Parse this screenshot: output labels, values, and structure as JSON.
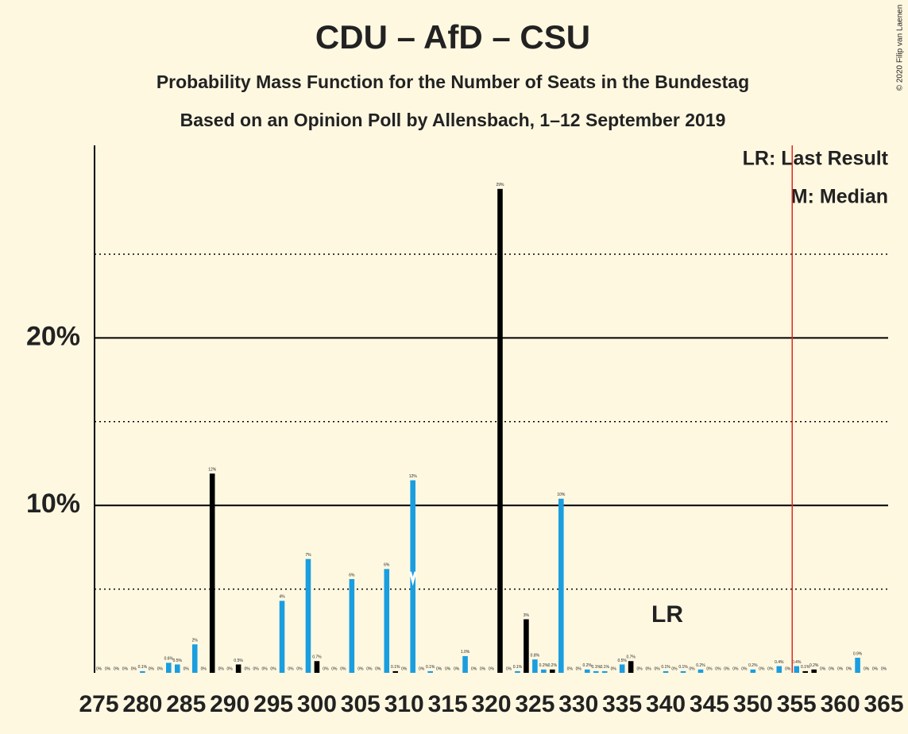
{
  "chart_data": {
    "type": "bar",
    "title": "CDU – AfD – CSU",
    "subtitle": "Probability Mass Function for the Number of Seats in the Bundestag",
    "subtitle2": "Based on an Opinion Poll by Allensbach, 1–12 September 2019",
    "copyright": "© 2020 Filip van Laenen",
    "legend": [
      "LR: Last Result",
      "M: Median"
    ],
    "annotation": "LR",
    "color": "#1a9ee0",
    "highlight_color": "#000000",
    "last_result_color": "#e0281e",
    "highlighted": [
      288,
      291,
      300,
      309,
      321,
      324,
      327,
      336,
      356,
      357
    ],
    "median": 311,
    "last_result": 354,
    "x": [
      275,
      276,
      277,
      278,
      279,
      280,
      281,
      282,
      283,
      284,
      285,
      286,
      287,
      288,
      289,
      290,
      291,
      292,
      293,
      294,
      295,
      296,
      297,
      298,
      299,
      300,
      301,
      302,
      303,
      304,
      305,
      306,
      307,
      308,
      309,
      310,
      311,
      312,
      313,
      314,
      315,
      316,
      317,
      318,
      319,
      320,
      321,
      322,
      323,
      324,
      325,
      326,
      327,
      328,
      329,
      330,
      331,
      332,
      333,
      334,
      335,
      336,
      337,
      338,
      339,
      340,
      341,
      342,
      343,
      344,
      345,
      346,
      347,
      348,
      349,
      350,
      351,
      352,
      353,
      354,
      355,
      356,
      357,
      358,
      359,
      360,
      361,
      362,
      363,
      364,
      365
    ],
    "values": [
      0,
      0,
      0,
      0,
      0,
      0.1,
      0,
      0,
      0.6,
      0.5,
      0,
      1.7,
      0,
      11.9,
      0,
      0,
      0.5,
      0,
      0,
      0,
      0,
      4.3,
      0,
      0,
      6.8,
      0.7,
      0,
      0,
      0,
      5.6,
      0,
      0,
      0,
      6.2,
      0.1,
      0,
      11.5,
      0,
      0.1,
      0,
      0,
      0,
      1.0,
      0,
      0,
      0,
      28.9,
      0,
      0.1,
      3.2,
      0.8,
      0.2,
      0.2,
      10.4,
      0,
      0,
      0.2,
      0.1,
      0.1,
      0,
      0.5,
      0.7,
      0,
      0,
      0,
      0.1,
      0,
      0.1,
      0,
      0.2,
      0,
      0,
      0,
      0,
      0,
      0.2,
      0,
      0,
      0.4,
      0,
      0.4,
      0.1,
      0.2,
      0,
      0,
      0,
      0,
      0.9,
      0,
      0,
      0
    ],
    "value_labels": [
      "0%",
      "0%",
      "0%",
      "0%",
      "0%",
      "0.1%",
      "0%",
      "0%",
      "0.6%",
      "0.5%",
      "0%",
      "2%",
      "0%",
      "12%",
      "0%",
      "0%",
      "0.5%",
      "0%",
      "0%",
      "0%",
      "0%",
      "4%",
      "0%",
      "0%",
      "7%",
      "0.7%",
      "0%",
      "0%",
      "0%",
      "6%",
      "0%",
      "0%",
      "0%",
      "6%",
      "0.1%",
      "0%",
      "12%",
      "0%",
      "0.1%",
      "0%",
      "0%",
      "0%",
      "1.0%",
      "0%",
      "0%",
      "0%",
      "29%",
      "0%",
      "0.1%",
      "3%",
      "0.8%",
      "0.2%",
      "0.2%",
      "10%",
      "0%",
      "0%",
      "0.2%",
      "0.1%",
      "0.1%",
      "0%",
      "0.5%",
      "0.7%",
      "0%",
      "0%",
      "0%",
      "0.1%",
      "0%",
      "0.1%",
      "0%",
      "0.2%",
      "0%",
      "0%",
      "0%",
      "0%",
      "0%",
      "0.2%",
      "0%",
      "0%",
      "0.4%",
      "0%",
      "0.4%",
      "0.1%",
      "0.2%",
      "0%",
      "0%",
      "0%",
      "0%",
      "0.9%",
      "0%",
      "0%",
      "0%"
    ],
    "xlim": [
      274.5,
      365.5
    ],
    "xticks": [
      275,
      280,
      285,
      290,
      295,
      300,
      305,
      310,
      315,
      320,
      325,
      330,
      335,
      340,
      345,
      350,
      355,
      360,
      365
    ],
    "ylim": [
      0,
      31.5
    ],
    "yticks": [
      {
        "value": 10,
        "label": "10%"
      },
      {
        "value": 20,
        "label": "20%"
      }
    ],
    "minor_grid": [
      5,
      15,
      25
    ]
  }
}
